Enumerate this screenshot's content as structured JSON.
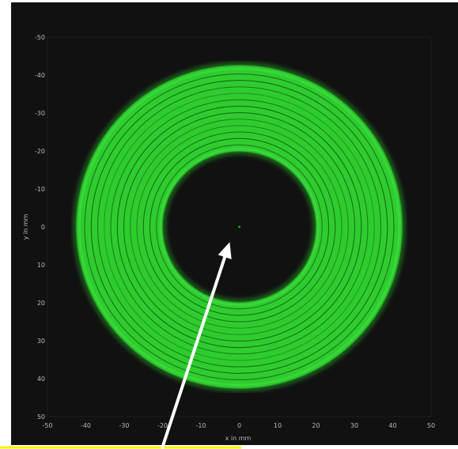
{
  "chart_data": {
    "type": "heatmap",
    "title": "",
    "xlabel": "x in mm",
    "ylabel": "y in mm",
    "xlim": [
      -50,
      50
    ],
    "ylim": [
      -50,
      50
    ],
    "y_axis_inverted": true,
    "x_ticks": [
      -50,
      -40,
      -30,
      -20,
      -10,
      0,
      10,
      20,
      30,
      40,
      50
    ],
    "y_ticks": [
      -50,
      -40,
      -30,
      -20,
      -10,
      0,
      10,
      20,
      30,
      40,
      50
    ],
    "grid": false,
    "colormap": "green intensity on black",
    "pattern": "annular ring of concentric interference fringes centred at (0, 0)",
    "inner_ring_radius_mm": 20,
    "outer_ring_radius_mm": 42.5,
    "central_spot": {
      "x": 0,
      "y": 0
    }
  },
  "colors": {
    "background": "#ffffff",
    "plot_background": "#111111",
    "ring": "#2ecc2e",
    "ring_dark_band": "#0d2e0d",
    "tick_text": "#b8b8b8",
    "arrow": "#ffffff",
    "callout_line": "#f5f500"
  },
  "annotations": {
    "arrow": {
      "from": {
        "x": -20,
        "y": 58
      },
      "to": {
        "x": -2.5,
        "y": 4
      }
    }
  }
}
